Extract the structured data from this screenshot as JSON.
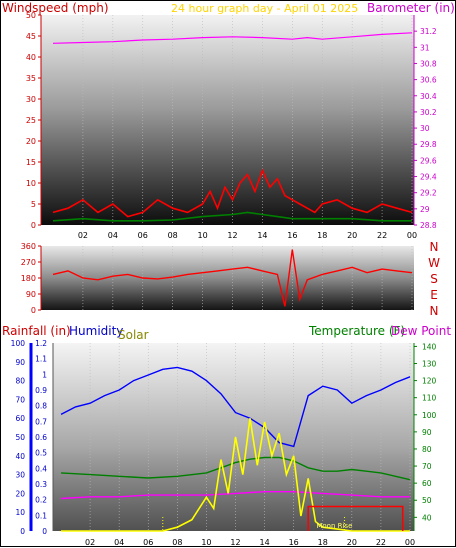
{
  "chart_data": [
    {
      "type": "line",
      "left_label": "Windspeed (mph)",
      "center_label": "24 hour graph day - April 01 2025",
      "right_label": "Barometer (in)",
      "x_ticks": [
        "02",
        "04",
        "06",
        "08",
        "10",
        "12",
        "14",
        "16",
        "18",
        "20",
        "22",
        "00"
      ],
      "y_left_ticks": [
        0,
        5,
        10,
        15,
        20,
        25,
        30,
        35,
        40,
        45,
        50
      ],
      "y_left_range": [
        0,
        50
      ],
      "y_right_ticks": [
        28.8,
        29,
        29.2,
        29.4,
        29.6,
        29.8,
        30,
        30.2,
        30.4,
        30.6,
        30.8,
        31,
        31.2
      ],
      "y_right_range": [
        28.8,
        31.4
      ],
      "series": [
        {
          "key": "wind_gust",
          "color": "#ff0000",
          "axis": "left",
          "x": [
            0,
            1,
            2,
            3,
            4,
            5,
            6,
            7,
            8,
            9,
            10,
            10.5,
            11,
            11.5,
            12,
            12.5,
            13,
            13.5,
            14,
            14.5,
            15,
            15.5,
            16,
            16.5,
            17,
            17.5,
            18,
            19,
            20,
            21,
            22,
            23,
            24
          ],
          "y": [
            3,
            4,
            6,
            3,
            5,
            2,
            3,
            6,
            4,
            3,
            5,
            8,
            4,
            9,
            6,
            10,
            12,
            8,
            13,
            9,
            11,
            7,
            6,
            5,
            4,
            3,
            5,
            6,
            4,
            3,
            5,
            4,
            3
          ]
        },
        {
          "key": "wind_avg",
          "color": "#008000",
          "axis": "left",
          "x": [
            0,
            2,
            4,
            6,
            8,
            10,
            12,
            13,
            14,
            15,
            16,
            18,
            20,
            22,
            24
          ],
          "y": [
            1,
            1.5,
            1,
            1,
            1.2,
            2,
            2.5,
            3,
            2.5,
            2,
            1.5,
            1.5,
            1.5,
            1,
            1
          ]
        },
        {
          "key": "barometer",
          "color": "#ff00ff",
          "axis": "right",
          "x": [
            0,
            2,
            4,
            6,
            8,
            10,
            12,
            14,
            16,
            17,
            18,
            20,
            22,
            24
          ],
          "y": [
            31.05,
            31.06,
            31.07,
            31.09,
            31.1,
            31.12,
            31.13,
            31.12,
            31.1,
            31.12,
            31.1,
            31.13,
            31.16,
            31.18
          ]
        }
      ]
    },
    {
      "type": "scatter",
      "left_ticks": [
        0,
        90,
        180,
        270,
        360
      ],
      "y_range": [
        0,
        360
      ],
      "compass_labels": [
        "N",
        "W",
        "S",
        "E",
        "N"
      ],
      "x_ticks": [
        "02",
        "04",
        "06",
        "08",
        "10",
        "12",
        "14",
        "16",
        "18",
        "20",
        "22",
        "00"
      ],
      "series": [
        {
          "key": "wind_direction",
          "color": "#ff0000",
          "x": [
            0,
            1,
            2,
            3,
            4,
            5,
            6,
            7,
            8,
            9,
            10,
            11,
            12,
            13,
            14,
            15,
            15.5,
            16,
            16.5,
            17,
            18,
            19,
            20,
            21,
            22,
            23,
            24
          ],
          "y": [
            200,
            220,
            180,
            170,
            190,
            200,
            180,
            175,
            185,
            200,
            210,
            220,
            230,
            240,
            220,
            200,
            20,
            340,
            60,
            170,
            200,
            220,
            240,
            210,
            230,
            220,
            210
          ]
        }
      ]
    },
    {
      "type": "line",
      "left_label_1": "Rainfall (in)",
      "left_label_2": "Humidity",
      "left_label_3": "Solar",
      "right_label_1": "Temperature (F)",
      "right_label_2": "Dew Point (",
      "left_ticks": [
        0,
        10,
        20,
        30,
        40,
        50,
        60,
        70,
        80,
        90,
        100
      ],
      "rain_ticks": [
        0,
        0.1,
        0.2,
        0.3,
        0.4,
        0.5,
        0.6,
        0.7,
        0.8,
        0.9,
        1,
        1.1,
        1.2
      ],
      "right_ticks": [
        40,
        50,
        60,
        70,
        80,
        90,
        100,
        110,
        120,
        130,
        140
      ],
      "y_left_range": [
        0,
        100
      ],
      "y_right_range": [
        32,
        142
      ],
      "x_ticks": [
        "02",
        "04",
        "06",
        "08",
        "10",
        "12",
        "14",
        "16",
        "18",
        "20",
        "22",
        "00"
      ],
      "annotation": "Moon Rise",
      "series": [
        {
          "key": "humidity",
          "color": "#0000ff",
          "axis": "left",
          "x": [
            0,
            1,
            2,
            3,
            4,
            5,
            6,
            7,
            8,
            9,
            10,
            11,
            12,
            13,
            14,
            15,
            16,
            17,
            18,
            19,
            20,
            21,
            22,
            23,
            24
          ],
          "y": [
            62,
            66,
            68,
            72,
            75,
            80,
            83,
            86,
            87,
            85,
            80,
            73,
            63,
            60,
            55,
            47,
            45,
            72,
            77,
            75,
            68,
            72,
            75,
            79,
            82
          ]
        },
        {
          "key": "temperature",
          "color": "#008000",
          "axis": "right",
          "x": [
            0,
            2,
            4,
            6,
            8,
            10,
            11,
            12,
            13,
            14,
            15,
            16,
            17,
            18,
            19,
            20,
            21,
            22,
            23,
            24
          ],
          "y": [
            66,
            65,
            64,
            63,
            64,
            66,
            69,
            72,
            74,
            75,
            75,
            73,
            69,
            67,
            67,
            68,
            67,
            66,
            64,
            62
          ]
        },
        {
          "key": "dew_point",
          "color": "#ff00ff",
          "axis": "right",
          "x": [
            0,
            2,
            4,
            6,
            8,
            10,
            12,
            14,
            16,
            18,
            20,
            22,
            24
          ],
          "y": [
            51,
            52,
            52,
            53,
            53,
            53,
            54,
            55,
            55,
            54,
            53,
            52,
            52
          ]
        },
        {
          "key": "solar",
          "color": "#ffff00",
          "axis": "left",
          "x": [
            0,
            6,
            7,
            8,
            9,
            10,
            10.5,
            11,
            11.5,
            12,
            12.5,
            13,
            13.5,
            14,
            14.5,
            15,
            15.5,
            16,
            16.5,
            17,
            17.5,
            18,
            19,
            20,
            24
          ],
          "y": [
            0,
            0,
            0,
            2,
            6,
            18,
            12,
            38,
            20,
            50,
            30,
            60,
            35,
            58,
            40,
            52,
            30,
            40,
            8,
            28,
            5,
            2,
            1,
            0,
            0
          ]
        },
        {
          "key": "rain_box",
          "color": "#ff0000",
          "axis": "left",
          "x": [
            17,
            23.5
          ],
          "y": [
            13,
            13
          ]
        }
      ]
    }
  ]
}
